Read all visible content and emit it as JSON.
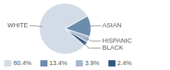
{
  "chart_data": {
    "type": "pie",
    "categories": [
      "WHITE",
      "ASIAN",
      "HISPANIC",
      "BLACK"
    ],
    "values": [
      80.4,
      13.4,
      3.9,
      2.4
    ],
    "value_labels": [
      "80.4%",
      "13.4%",
      "3.9%",
      "2.4%"
    ],
    "colors": [
      "#d3dce6",
      "#6c8cad",
      "#a8b9cb",
      "#305a80"
    ],
    "legend": "bottom"
  }
}
